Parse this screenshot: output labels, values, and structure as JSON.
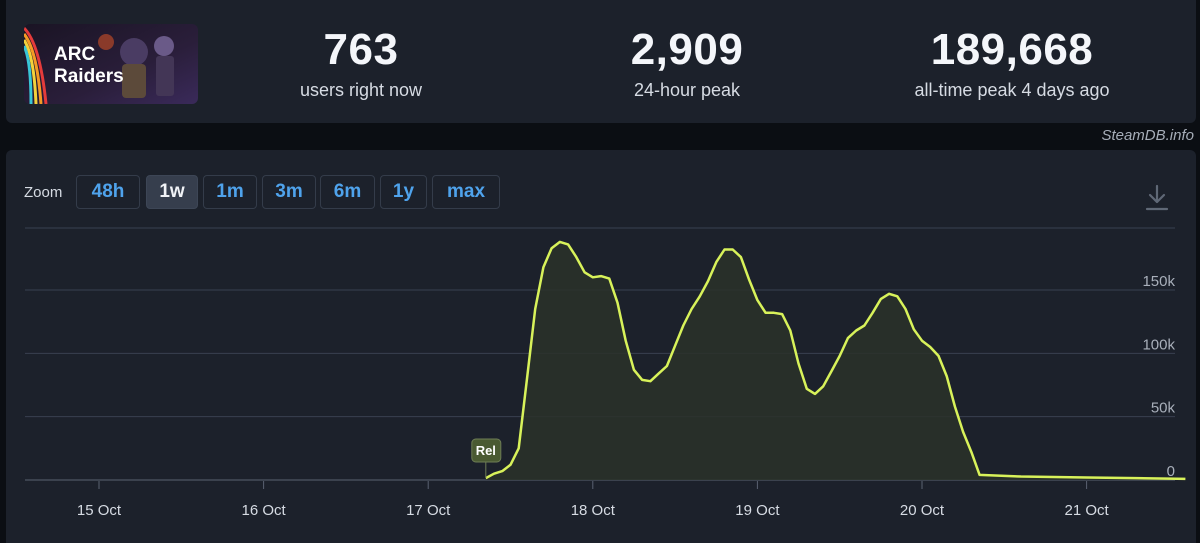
{
  "game": {
    "logo_text_line1": "ARC",
    "logo_text_line2": "Raiders"
  },
  "stats": [
    {
      "value": "763",
      "label": "users right now"
    },
    {
      "value": "2,909",
      "label": "24-hour peak"
    },
    {
      "value": "189,668",
      "label": "all-time peak 4 days ago"
    }
  ],
  "watermark": "SteamDB.info",
  "zoom": {
    "label": "Zoom",
    "options": [
      "48h",
      "1w",
      "1m",
      "3m",
      "6m",
      "1y",
      "max"
    ],
    "selected": "1w"
  },
  "icons": {
    "download": "download-icon"
  },
  "colors": {
    "line": "#d8f25a",
    "accent": "#4fa3ec",
    "marker": "#4a5a32"
  },
  "chart_data": {
    "type": "area",
    "series": [
      {
        "x": [
          17.35,
          17.4,
          17.45,
          17.5,
          17.55,
          17.6,
          17.65,
          17.7,
          17.75,
          17.8,
          17.85,
          17.9,
          17.95,
          18.0,
          18.05,
          18.1,
          18.15,
          18.2,
          18.25,
          18.3,
          18.35,
          18.4,
          18.45,
          18.5,
          18.55,
          18.6,
          18.65,
          18.7,
          18.75,
          18.8,
          18.85,
          18.9,
          18.95,
          19.0,
          19.05,
          19.1,
          19.15,
          19.2,
          19.25,
          19.3,
          19.35,
          19.4,
          19.45,
          19.5,
          19.55,
          19.6,
          19.65,
          19.7,
          19.75,
          19.8,
          19.85,
          19.9,
          19.95,
          20.0,
          20.05,
          20.1,
          20.15,
          20.2,
          20.25,
          20.3,
          20.35,
          20.6,
          21.0,
          21.3,
          21.6
        ],
        "y": [
          1500,
          5000,
          7000,
          12000,
          25000,
          80000,
          135000,
          168000,
          183000,
          188000,
          186000,
          176000,
          164000,
          160000,
          161000,
          159000,
          140000,
          110000,
          87000,
          79000,
          78000,
          84000,
          90000,
          106000,
          122000,
          135000,
          145000,
          157000,
          172000,
          182000,
          182000,
          176000,
          158000,
          142000,
          132000,
          132000,
          131000,
          118000,
          92000,
          72000,
          68000,
          74000,
          86000,
          98000,
          112000,
          118000,
          122000,
          132000,
          143000,
          147000,
          145000,
          135000,
          119000,
          110000,
          105000,
          98000,
          82000,
          58000,
          38000,
          22000,
          4000,
          2800,
          2000,
          1500,
          900
        ]
      }
    ],
    "x_ticks": [
      "15 Oct",
      "16 Oct",
      "17 Oct",
      "18 Oct",
      "19 Oct",
      "20 Oct",
      "21 Oct"
    ],
    "y_ticks": [
      "0",
      "50k",
      "100k",
      "150k"
    ],
    "ylim": [
      0,
      190000
    ],
    "annotations": [
      {
        "x": 17.35,
        "label": "Rel"
      }
    ],
    "grid": true
  }
}
